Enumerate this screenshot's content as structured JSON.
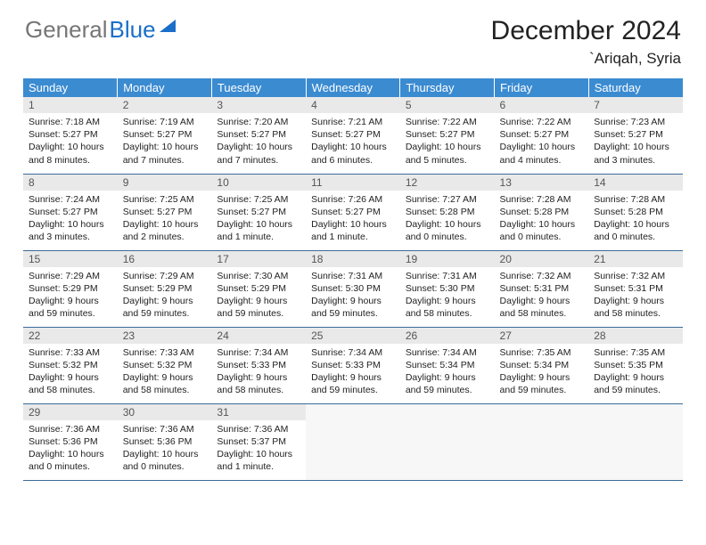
{
  "logo": {
    "gray": "General",
    "blue": "Blue"
  },
  "title": "December 2024",
  "location": "`Ariqah, Syria",
  "colors": {
    "header_bg": "#3b8bd1",
    "daynum_bg": "#e9e9e9",
    "row_border": "#3b6b9a",
    "logo_gray": "#767676",
    "logo_blue": "#1a6fc9"
  },
  "weekdays": [
    "Sunday",
    "Monday",
    "Tuesday",
    "Wednesday",
    "Thursday",
    "Friday",
    "Saturday"
  ],
  "weeks": [
    [
      {
        "n": "1",
        "sr": "7:18 AM",
        "ss": "5:27 PM",
        "dl": "10 hours and 8 minutes."
      },
      {
        "n": "2",
        "sr": "7:19 AM",
        "ss": "5:27 PM",
        "dl": "10 hours and 7 minutes."
      },
      {
        "n": "3",
        "sr": "7:20 AM",
        "ss": "5:27 PM",
        "dl": "10 hours and 7 minutes."
      },
      {
        "n": "4",
        "sr": "7:21 AM",
        "ss": "5:27 PM",
        "dl": "10 hours and 6 minutes."
      },
      {
        "n": "5",
        "sr": "7:22 AM",
        "ss": "5:27 PM",
        "dl": "10 hours and 5 minutes."
      },
      {
        "n": "6",
        "sr": "7:22 AM",
        "ss": "5:27 PM",
        "dl": "10 hours and 4 minutes."
      },
      {
        "n": "7",
        "sr": "7:23 AM",
        "ss": "5:27 PM",
        "dl": "10 hours and 3 minutes."
      }
    ],
    [
      {
        "n": "8",
        "sr": "7:24 AM",
        "ss": "5:27 PM",
        "dl": "10 hours and 3 minutes."
      },
      {
        "n": "9",
        "sr": "7:25 AM",
        "ss": "5:27 PM",
        "dl": "10 hours and 2 minutes."
      },
      {
        "n": "10",
        "sr": "7:25 AM",
        "ss": "5:27 PM",
        "dl": "10 hours and 1 minute."
      },
      {
        "n": "11",
        "sr": "7:26 AM",
        "ss": "5:27 PM",
        "dl": "10 hours and 1 minute."
      },
      {
        "n": "12",
        "sr": "7:27 AM",
        "ss": "5:28 PM",
        "dl": "10 hours and 0 minutes."
      },
      {
        "n": "13",
        "sr": "7:28 AM",
        "ss": "5:28 PM",
        "dl": "10 hours and 0 minutes."
      },
      {
        "n": "14",
        "sr": "7:28 AM",
        "ss": "5:28 PM",
        "dl": "10 hours and 0 minutes."
      }
    ],
    [
      {
        "n": "15",
        "sr": "7:29 AM",
        "ss": "5:29 PM",
        "dl": "9 hours and 59 minutes."
      },
      {
        "n": "16",
        "sr": "7:29 AM",
        "ss": "5:29 PM",
        "dl": "9 hours and 59 minutes."
      },
      {
        "n": "17",
        "sr": "7:30 AM",
        "ss": "5:29 PM",
        "dl": "9 hours and 59 minutes."
      },
      {
        "n": "18",
        "sr": "7:31 AM",
        "ss": "5:30 PM",
        "dl": "9 hours and 59 minutes."
      },
      {
        "n": "19",
        "sr": "7:31 AM",
        "ss": "5:30 PM",
        "dl": "9 hours and 58 minutes."
      },
      {
        "n": "20",
        "sr": "7:32 AM",
        "ss": "5:31 PM",
        "dl": "9 hours and 58 minutes."
      },
      {
        "n": "21",
        "sr": "7:32 AM",
        "ss": "5:31 PM",
        "dl": "9 hours and 58 minutes."
      }
    ],
    [
      {
        "n": "22",
        "sr": "7:33 AM",
        "ss": "5:32 PM",
        "dl": "9 hours and 58 minutes."
      },
      {
        "n": "23",
        "sr": "7:33 AM",
        "ss": "5:32 PM",
        "dl": "9 hours and 58 minutes."
      },
      {
        "n": "24",
        "sr": "7:34 AM",
        "ss": "5:33 PM",
        "dl": "9 hours and 58 minutes."
      },
      {
        "n": "25",
        "sr": "7:34 AM",
        "ss": "5:33 PM",
        "dl": "9 hours and 59 minutes."
      },
      {
        "n": "26",
        "sr": "7:34 AM",
        "ss": "5:34 PM",
        "dl": "9 hours and 59 minutes."
      },
      {
        "n": "27",
        "sr": "7:35 AM",
        "ss": "5:34 PM",
        "dl": "9 hours and 59 minutes."
      },
      {
        "n": "28",
        "sr": "7:35 AM",
        "ss": "5:35 PM",
        "dl": "9 hours and 59 minutes."
      }
    ],
    [
      {
        "n": "29",
        "sr": "7:36 AM",
        "ss": "5:36 PM",
        "dl": "10 hours and 0 minutes."
      },
      {
        "n": "30",
        "sr": "7:36 AM",
        "ss": "5:36 PM",
        "dl": "10 hours and 0 minutes."
      },
      {
        "n": "31",
        "sr": "7:36 AM",
        "ss": "5:37 PM",
        "dl": "10 hours and 1 minute."
      },
      null,
      null,
      null,
      null
    ]
  ],
  "labels": {
    "sunrise": "Sunrise:",
    "sunset": "Sunset:",
    "daylight": "Daylight:"
  }
}
